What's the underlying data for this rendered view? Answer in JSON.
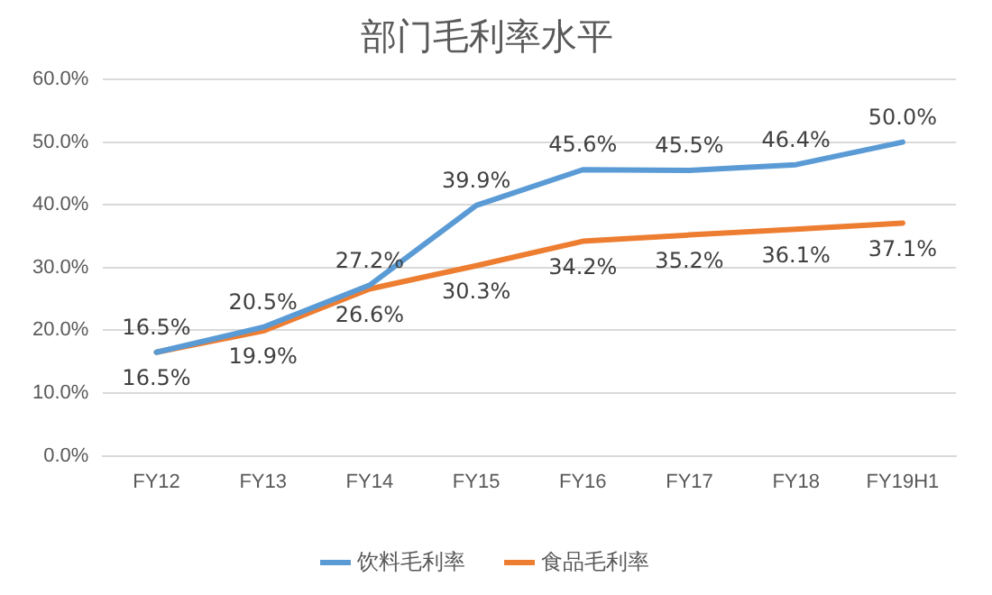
{
  "chart_data": {
    "type": "line",
    "title": "部门毛利率水平",
    "categories": [
      "FY12",
      "FY13",
      "FY14",
      "FY15",
      "FY16",
      "FY17",
      "FY18",
      "FY19H1"
    ],
    "series": [
      {
        "name": "饮料毛利率",
        "color": "#5b9bd5",
        "values": [
          16.5,
          20.5,
          27.2,
          39.9,
          45.6,
          45.5,
          46.4,
          50.0
        ],
        "value_labels": [
          "16.5%",
          "20.5%",
          "27.2%",
          "39.9%",
          "45.6%",
          "45.5%",
          "46.4%",
          "50.0%"
        ]
      },
      {
        "name": "食品毛利率",
        "color": "#ed7d31",
        "values": [
          16.5,
          19.9,
          26.6,
          30.3,
          34.2,
          35.2,
          36.1,
          37.1
        ],
        "value_labels": [
          "16.5%",
          "19.9%",
          "26.6%",
          "30.3%",
          "34.2%",
          "35.2%",
          "36.1%",
          "37.1%"
        ]
      }
    ],
    "ylim": [
      0,
      60
    ],
    "yticks": [
      {
        "value": 0,
        "label": "0.0%"
      },
      {
        "value": 10,
        "label": "10.0%"
      },
      {
        "value": 20,
        "label": "20.0%"
      },
      {
        "value": 30,
        "label": "30.0%"
      },
      {
        "value": 40,
        "label": "40.0%"
      },
      {
        "value": 50,
        "label": "50.0%"
      },
      {
        "value": 60,
        "label": "60.0%"
      }
    ],
    "grid": "y",
    "legend": "bottom",
    "marker": "none",
    "line_style": "solid"
  }
}
